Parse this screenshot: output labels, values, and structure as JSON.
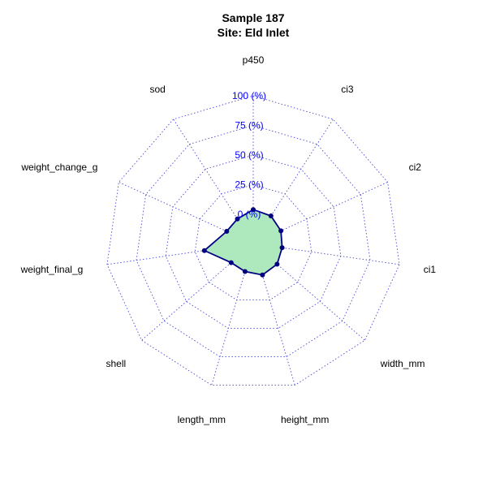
{
  "chart_data": {
    "type": "radar",
    "title": "Sample 187",
    "subtitle": "Site: Eld Inlet",
    "axes": [
      "p450",
      "ci3",
      "ci2",
      "ci1",
      "width_mm",
      "height_mm",
      "length_mm",
      "shell",
      "weight_final_g",
      "weight_change_g",
      "sod"
    ],
    "rings": [
      {
        "value": 0,
        "label": "0 (%)"
      },
      {
        "value": 25,
        "label": "25 (%)"
      },
      {
        "value": 50,
        "label": "50 (%)"
      },
      {
        "value": 75,
        "label": "75 (%)"
      },
      {
        "value": 100,
        "label": "100 (%)"
      }
    ],
    "series": [
      {
        "values": [
          4,
          3,
          1,
          0,
          2,
          3,
          0,
          0,
          17,
          0,
          0
        ]
      }
    ],
    "range": [
      0,
      100
    ],
    "colors": {
      "fill": "#aee8bd",
      "line": "#000080",
      "grid": "#4a4ad6",
      "ring_label": "#0000ff"
    }
  }
}
